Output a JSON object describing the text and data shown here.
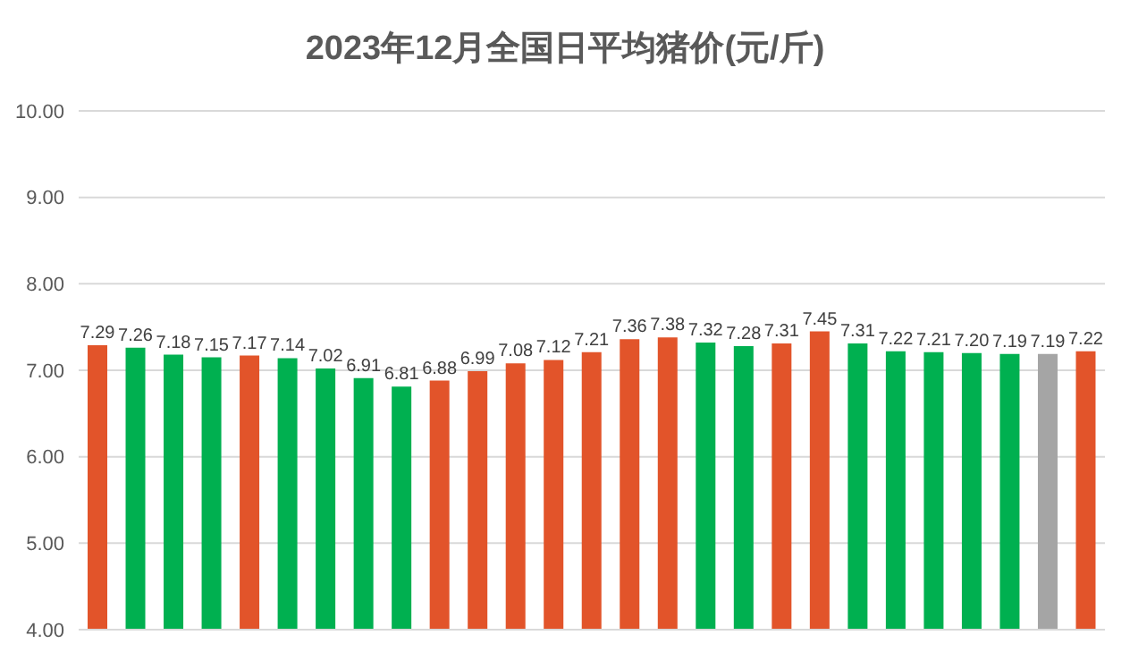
{
  "chart_data": {
    "type": "bar",
    "title": "2023年12月全国日平均猪价(元/斤)",
    "categories": [
      null,
      null,
      null,
      null,
      null,
      null,
      null,
      null,
      null,
      null,
      null,
      null,
      null,
      null,
      null,
      null,
      null,
      null,
      null,
      null,
      null,
      null,
      null,
      null,
      null,
      null,
      null
    ],
    "values": [
      7.29,
      7.26,
      7.18,
      7.15,
      7.17,
      7.14,
      7.02,
      6.91,
      6.81,
      6.88,
      6.99,
      7.08,
      7.12,
      7.21,
      7.36,
      7.38,
      7.32,
      7.28,
      7.31,
      7.45,
      7.31,
      7.22,
      7.21,
      7.2,
      7.19,
      7.19,
      7.22
    ],
    "value_labels": [
      "7.29",
      "7.26",
      "7.18",
      "7.15",
      "7.17",
      "7.14",
      "7.02",
      "6.91",
      "6.81",
      "6.88",
      "6.99",
      "7.08",
      "7.12",
      "7.21",
      "7.36",
      "7.38",
      "7.32",
      "7.28",
      "7.31",
      "7.45",
      "7.31",
      "7.22",
      "7.21",
      "7.20",
      "7.19",
      "7.19",
      "7.22"
    ],
    "colors": [
      "#e2542a",
      "#00b050",
      "#00b050",
      "#00b050",
      "#e2542a",
      "#00b050",
      "#00b050",
      "#00b050",
      "#00b050",
      "#e2542a",
      "#e2542a",
      "#e2542a",
      "#e2542a",
      "#e2542a",
      "#e2542a",
      "#e2542a",
      "#00b050",
      "#00b050",
      "#e2542a",
      "#e2542a",
      "#00b050",
      "#00b050",
      "#00b050",
      "#00b050",
      "#00b050",
      "#a5a5a5",
      "#e2542a"
    ],
    "ylim": [
      4,
      10
    ],
    "yticks": [
      {
        "value": 4,
        "label": "4.00"
      },
      {
        "value": 5,
        "label": "5.00"
      },
      {
        "value": 6,
        "label": "6.00"
      },
      {
        "value": 7,
        "label": "7.00"
      },
      {
        "value": 8,
        "label": "8.00"
      },
      {
        "value": 9,
        "label": "9.00"
      },
      {
        "value": 10,
        "label": "10.00"
      }
    ],
    "grid": "y",
    "tick_labels": "y"
  }
}
